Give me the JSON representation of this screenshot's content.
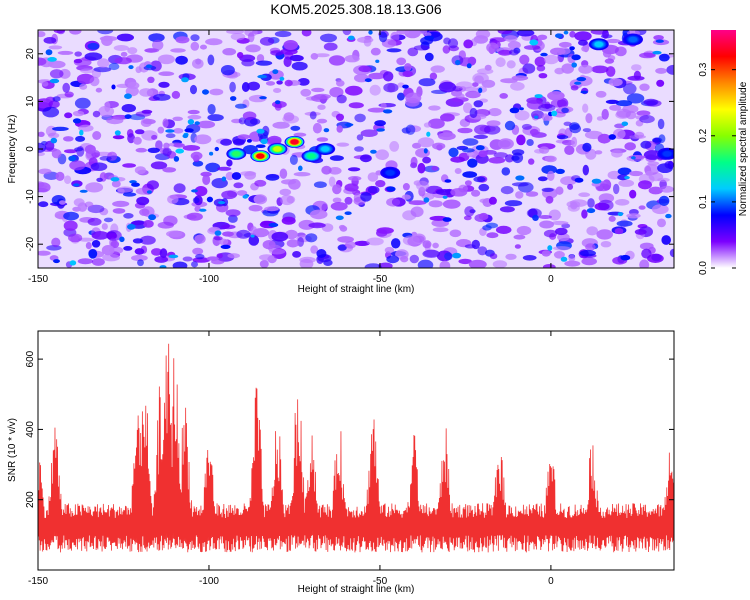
{
  "title": "KOM5.2025.308.18.13.G06",
  "chart_data": [
    {
      "type": "heatmap",
      "xlabel": "Height of straight line (km)",
      "ylabel": "Frequency (Hz)",
      "xlim": [
        -150,
        36
      ],
      "ylim": [
        -25,
        25
      ],
      "xticks": [
        -150,
        -100,
        -50,
        0
      ],
      "yticks": [
        -20,
        -10,
        0,
        10,
        20
      ],
      "colorbar": {
        "label": "Normalized spectral amplitude",
        "range": [
          0.0,
          0.36
        ],
        "ticks": [
          "0.0",
          "0.1",
          "0.2",
          "0.3"
        ]
      },
      "colormap": [
        "#ffffff",
        "#7b00ff",
        "#0000ff",
        "#00ccff",
        "#00ff88",
        "#88ff00",
        "#ffff00",
        "#ff8800",
        "#ff0000",
        "#ff0088"
      ],
      "peaks": [
        {
          "x": -85.0,
          "y": -1.5,
          "value": 0.32
        },
        {
          "x": -75.0,
          "y": 1.5,
          "value": 0.33
        },
        {
          "x": -80.0,
          "y": 0.0,
          "value": 0.22
        },
        {
          "x": -92.0,
          "y": -1.0,
          "value": 0.17
        },
        {
          "x": -70.0,
          "y": -1.5,
          "value": 0.16
        },
        {
          "x": -66.0,
          "y": 0.0,
          "value": 0.12
        },
        {
          "x": -47.0,
          "y": -5.0,
          "value": 0.09
        },
        {
          "x": 14.0,
          "y": 22.0,
          "value": 0.12
        },
        {
          "x": 24.0,
          "y": 23.0,
          "value": 0.1
        },
        {
          "x": 34.0,
          "y": -1.0,
          "value": 0.09
        }
      ]
    },
    {
      "type": "line",
      "xlabel": "Height of straight line (km)",
      "ylabel": "SNR (10 * v/v)",
      "xlim": [
        -150,
        36
      ],
      "ylim": [
        0,
        680
      ],
      "xticks": [
        -150,
        -100,
        -50,
        0
      ],
      "yticks": [
        200,
        400,
        600
      ],
      "line_color": "#f03030",
      "baseline": 120,
      "noise_amplitude": 70,
      "peaks": [
        {
          "x": -150.0,
          "y": 370
        },
        {
          "x": -145.0,
          "y": 440
        },
        {
          "x": -121.0,
          "y": 450
        },
        {
          "x": -119.0,
          "y": 620
        },
        {
          "x": -114.0,
          "y": 580
        },
        {
          "x": -112.0,
          "y": 670
        },
        {
          "x": -110.0,
          "y": 640
        },
        {
          "x": -107.0,
          "y": 500
        },
        {
          "x": -100.0,
          "y": 400
        },
        {
          "x": -86.0,
          "y": 545
        },
        {
          "x": -80.0,
          "y": 440
        },
        {
          "x": -74.0,
          "y": 555
        },
        {
          "x": -70.0,
          "y": 430
        },
        {
          "x": -62.0,
          "y": 440
        },
        {
          "x": -52.0,
          "y": 490
        },
        {
          "x": -40.0,
          "y": 400
        },
        {
          "x": -31.0,
          "y": 420
        },
        {
          "x": -15.0,
          "y": 385
        },
        {
          "x": 0.0,
          "y": 355
        },
        {
          "x": 12.0,
          "y": 390
        },
        {
          "x": 35.0,
          "y": 375
        }
      ]
    }
  ]
}
